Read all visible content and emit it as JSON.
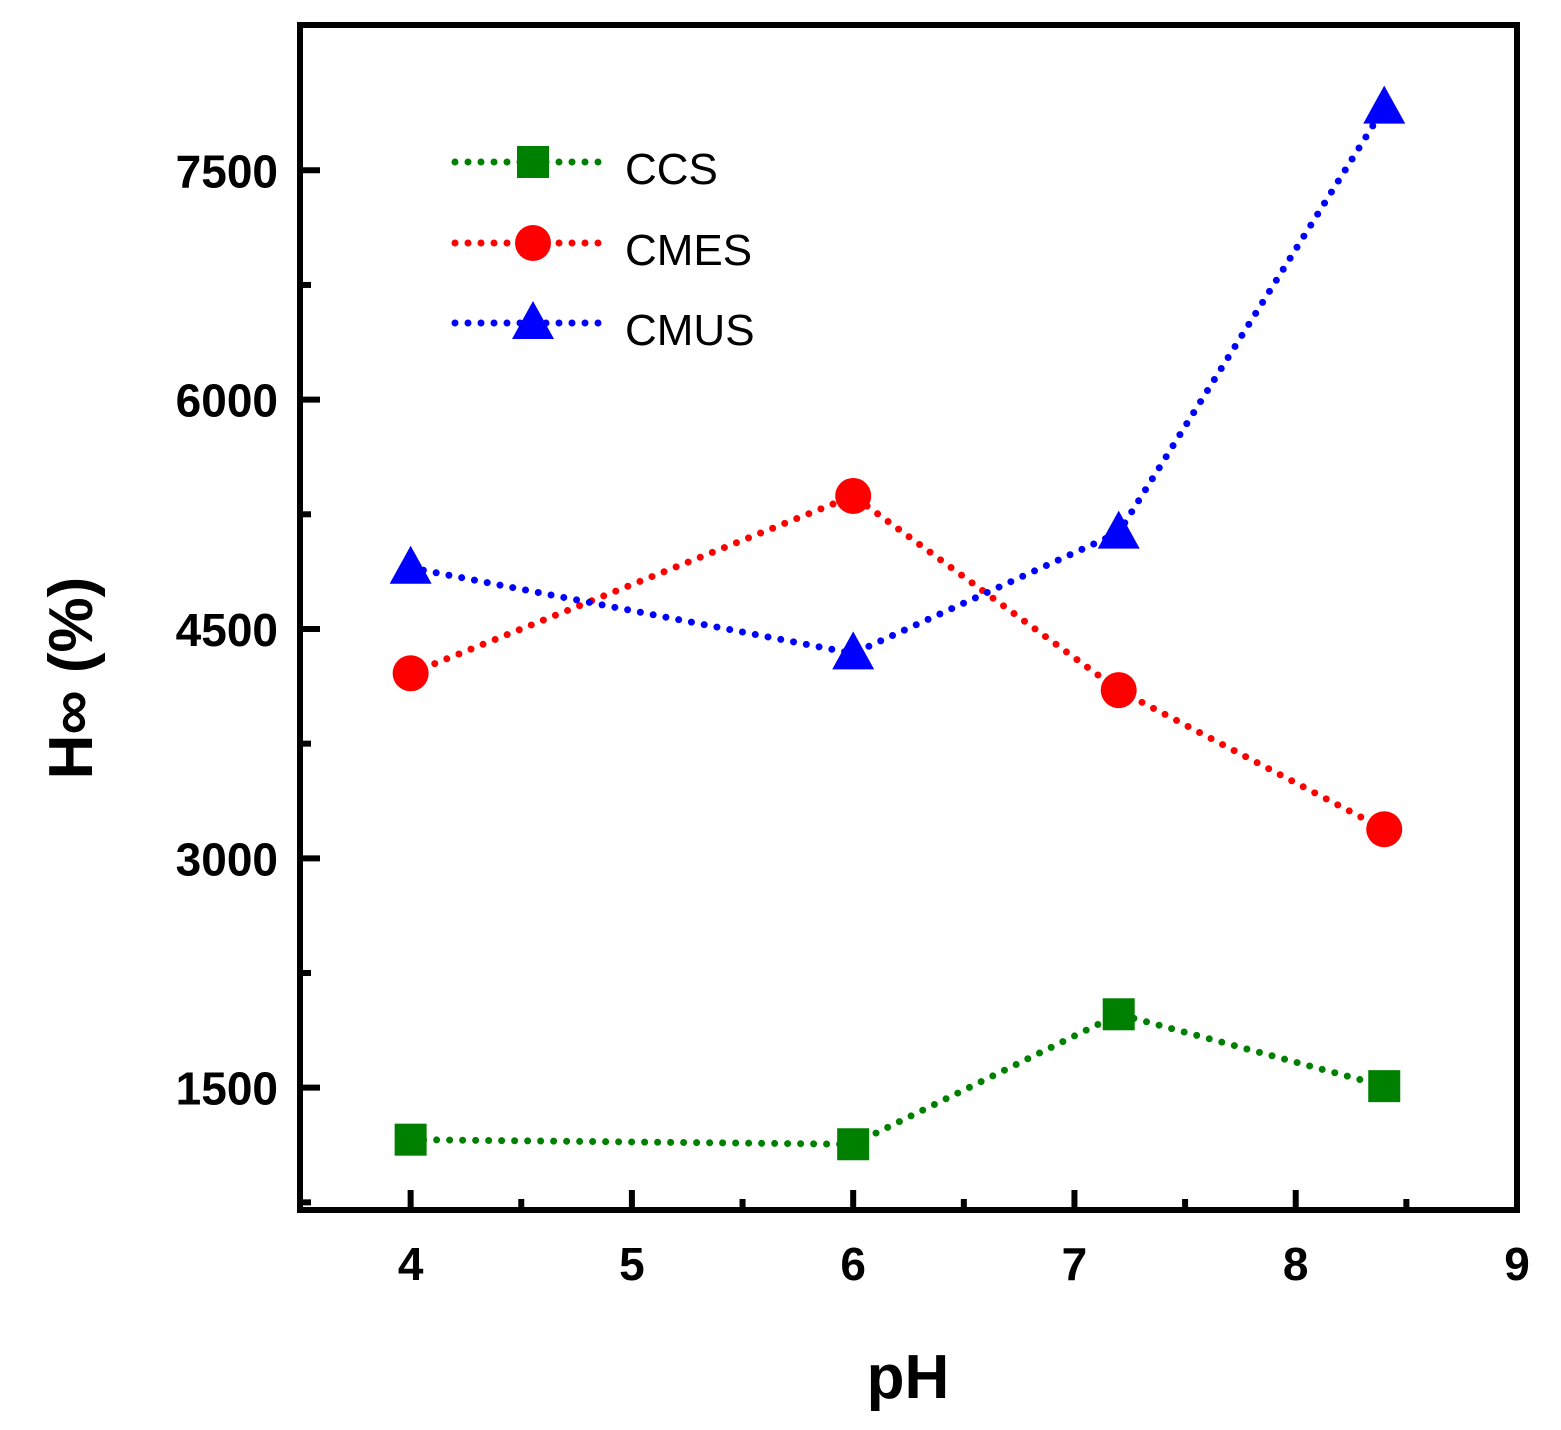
{
  "chart_data": {
    "type": "line",
    "title": "",
    "xlabel": "pH",
    "ylabel": "H∞ (%)",
    "xlim": [
      3.5,
      9
    ],
    "ylim": [
      700,
      8450
    ],
    "x_ticks": [
      4,
      5,
      6,
      7,
      8,
      9
    ],
    "y_ticks": [
      1500,
      3000,
      4500,
      6000,
      7500
    ],
    "x_minor_ticks": [
      4.5,
      5.5,
      6.5,
      7.5,
      8.5
    ],
    "y_minor_ticks": [
      750,
      2250,
      3750,
      5250,
      6750
    ],
    "legend_position": "top-left",
    "series": [
      {
        "name": "CCS",
        "color": "#008000",
        "marker": "square",
        "x": [
          4,
          6,
          7.2,
          8.4
        ],
        "values": [
          1160,
          1130,
          1980,
          1510
        ]
      },
      {
        "name": "CMES",
        "color": "#ff0000",
        "marker": "circle",
        "x": [
          4,
          6,
          7.2,
          8.4
        ],
        "values": [
          4210,
          5370,
          4100,
          3190
        ]
      },
      {
        "name": "CMUS",
        "color": "#0000ff",
        "marker": "triangle",
        "x": [
          4,
          6,
          7.2,
          8.4
        ],
        "values": [
          4900,
          4340,
          5130,
          7910
        ]
      }
    ]
  }
}
